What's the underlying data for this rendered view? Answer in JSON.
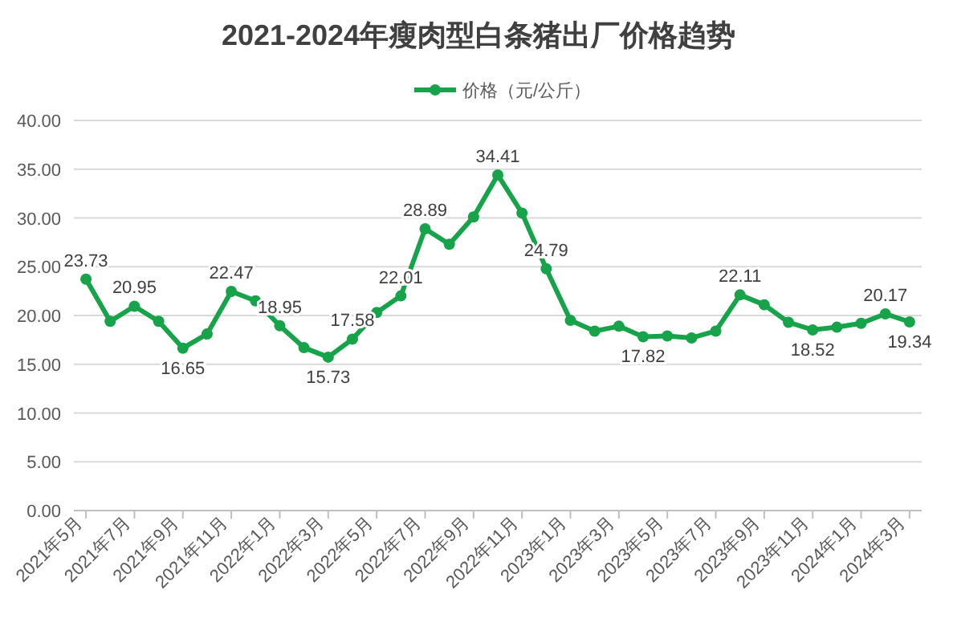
{
  "chart_data": {
    "type": "line",
    "title": "2021-2024年瘦肉型白条猪出厂价格趋势",
    "categories": [
      "2021年5月",
      null,
      "2021年7月",
      null,
      "2021年9月",
      null,
      "2021年11月",
      null,
      "2022年1月",
      null,
      "2022年3月",
      null,
      "2022年5月",
      null,
      "2022年7月",
      null,
      "2022年9月",
      null,
      "2022年11月",
      null,
      "2023年1月",
      null,
      "2023年3月",
      null,
      "2023年5月",
      null,
      "2023年7月",
      null,
      "2023年9月",
      null,
      "2023年11月",
      null,
      "2024年1月",
      null,
      "2024年3月"
    ],
    "series": [
      {
        "name": "价格（元/公斤）",
        "color": "#17a34a",
        "values": [
          23.73,
          19.4,
          20.95,
          19.4,
          16.65,
          18.1,
          22.47,
          21.5,
          18.95,
          16.7,
          15.73,
          17.58,
          20.3,
          22.01,
          28.89,
          27.3,
          30.1,
          34.41,
          30.5,
          24.79,
          19.5,
          18.4,
          18.9,
          17.82,
          17.9,
          17.7,
          18.4,
          22.11,
          21.1,
          19.3,
          18.52,
          18.8,
          19.2,
          20.17,
          19.34
        ],
        "value_labels": [
          "23.73",
          null,
          "20.95",
          null,
          "16.65",
          null,
          "22.47",
          null,
          "18.95",
          null,
          "15.73",
          "17.58",
          null,
          "22.01",
          "28.89",
          null,
          null,
          "34.41",
          null,
          "24.79",
          null,
          null,
          null,
          "17.82",
          null,
          null,
          null,
          "22.11",
          null,
          null,
          "18.52",
          null,
          null,
          "20.17",
          "19.34"
        ]
      }
    ],
    "ylim": [
      0,
      40
    ],
    "yticks": [
      {
        "value": 0,
        "label": "0.00"
      },
      {
        "value": 5,
        "label": "5.00"
      },
      {
        "value": 10,
        "label": "10.00"
      },
      {
        "value": 15,
        "label": "15.00"
      },
      {
        "value": 20,
        "label": "20.00"
      },
      {
        "value": 25,
        "label": "25.00"
      },
      {
        "value": 30,
        "label": "30.00"
      },
      {
        "value": 35,
        "label": "35.00"
      },
      {
        "value": 40,
        "label": "40.00"
      }
    ],
    "grid": "y",
    "legend": "top",
    "marker": "circle",
    "line_style": "solid"
  }
}
